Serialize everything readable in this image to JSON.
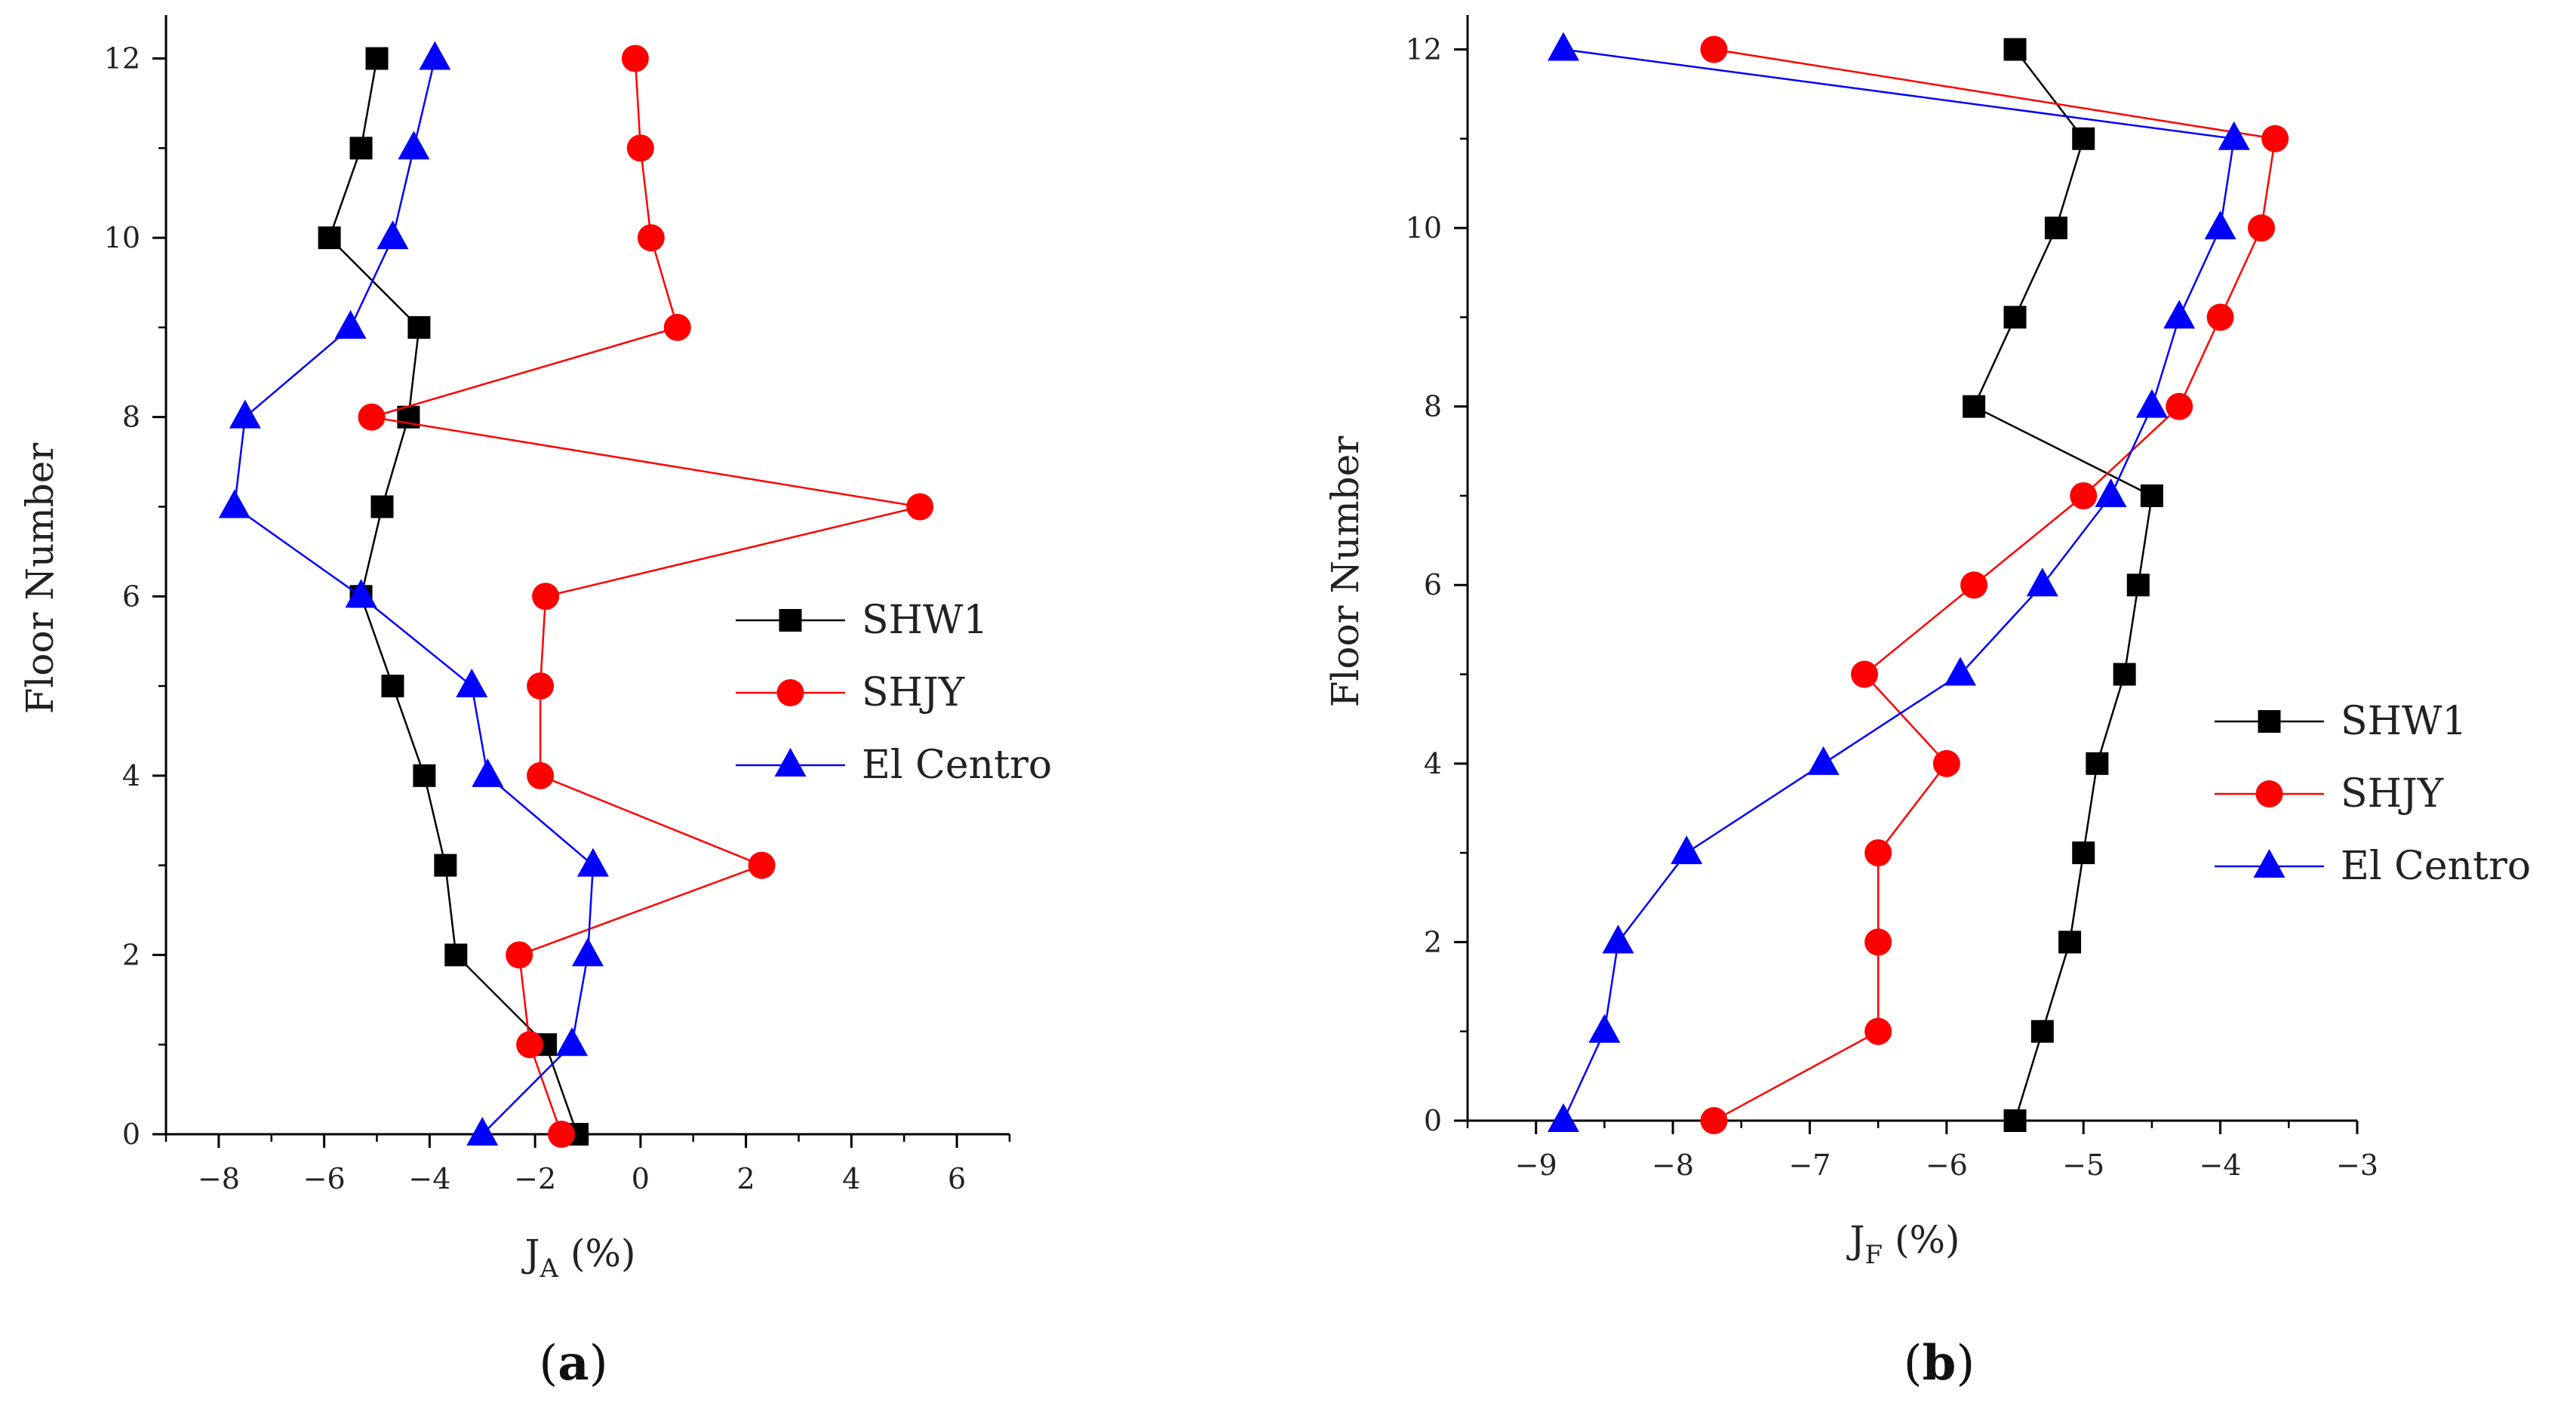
{
  "chart_data": [
    {
      "id": "a",
      "type": "line",
      "panel_label": {
        "open": "(",
        "letter": "a",
        "close": ")"
      },
      "xlabel": {
        "main": "J",
        "sub": "A",
        "unit": " (%)"
      },
      "ylabel": "Floor Number",
      "xlim": [
        -9,
        7
      ],
      "ylim": [
        0,
        12.4
      ],
      "xticks": [
        -8,
        -6,
        -4,
        -2,
        0,
        2,
        4,
        6
      ],
      "yticks": [
        0,
        2,
        4,
        6,
        8,
        10,
        12
      ],
      "legend_position": "center-right",
      "series": [
        {
          "name": "SHW1",
          "color": "#000000",
          "marker": "square",
          "points": [
            [
              -1.2,
              0
            ],
            [
              -1.8,
              1
            ],
            [
              -3.5,
              2
            ],
            [
              -3.7,
              3
            ],
            [
              -4.1,
              4
            ],
            [
              -4.7,
              5
            ],
            [
              -5.3,
              6
            ],
            [
              -4.9,
              7
            ],
            [
              -4.4,
              8
            ],
            [
              -4.2,
              9
            ],
            [
              -5.9,
              10
            ],
            [
              -5.3,
              11
            ],
            [
              -5.0,
              12
            ]
          ]
        },
        {
          "name": "SHJY",
          "color": "#ff0000",
          "marker": "circle",
          "points": [
            [
              -1.5,
              0
            ],
            [
              -2.1,
              1
            ],
            [
              -2.3,
              2
            ],
            [
              2.3,
              3
            ],
            [
              -1.9,
              4
            ],
            [
              -1.9,
              5
            ],
            [
              -1.8,
              6
            ],
            [
              5.3,
              7
            ],
            [
              -5.1,
              8
            ],
            [
              0.7,
              9
            ],
            [
              0.2,
              10
            ],
            [
              0.0,
              11
            ],
            [
              -0.1,
              12
            ]
          ]
        },
        {
          "name": "El Centro",
          "color": "#0000ff",
          "marker": "triangle",
          "points": [
            [
              -3.0,
              0
            ],
            [
              -1.3,
              1
            ],
            [
              -1.0,
              2
            ],
            [
              -0.9,
              3
            ],
            [
              -2.9,
              4
            ],
            [
              -3.2,
              5
            ],
            [
              -5.3,
              6
            ],
            [
              -7.7,
              7
            ],
            [
              -7.5,
              8
            ],
            [
              -5.5,
              9
            ],
            [
              -4.7,
              10
            ],
            [
              -4.3,
              11
            ],
            [
              -3.9,
              12
            ]
          ]
        }
      ]
    },
    {
      "id": "b",
      "type": "line",
      "panel_label": {
        "open": "(",
        "letter": "b",
        "close": ")"
      },
      "xlabel": {
        "main": "J",
        "sub": "F",
        "unit": " (%)"
      },
      "ylabel": "Floor Number",
      "xlim": [
        -9.5,
        -3
      ],
      "ylim": [
        0,
        12.3
      ],
      "xticks": [
        -9,
        -8,
        -7,
        -6,
        -5,
        -4,
        -3
      ],
      "yticks": [
        0,
        2,
        4,
        6,
        8,
        10,
        12
      ],
      "legend_position": "lower-right",
      "series": [
        {
          "name": "SHW1",
          "color": "#000000",
          "marker": "square",
          "points": [
            [
              -5.5,
              0
            ],
            [
              -5.3,
              1
            ],
            [
              -5.1,
              2
            ],
            [
              -5.0,
              3
            ],
            [
              -4.9,
              4
            ],
            [
              -4.7,
              5
            ],
            [
              -4.6,
              6
            ],
            [
              -4.5,
              7
            ],
            [
              -5.8,
              8
            ],
            [
              -5.5,
              9
            ],
            [
              -5.2,
              10
            ],
            [
              -5.0,
              11
            ],
            [
              -5.5,
              12
            ]
          ]
        },
        {
          "name": "SHJY",
          "color": "#ff0000",
          "marker": "circle",
          "points": [
            [
              -7.7,
              0
            ],
            [
              -6.5,
              1
            ],
            [
              -6.5,
              2
            ],
            [
              -6.5,
              3
            ],
            [
              -6.0,
              4
            ],
            [
              -6.6,
              5
            ],
            [
              -5.8,
              6
            ],
            [
              -5.0,
              7
            ],
            [
              -4.3,
              8
            ],
            [
              -4.0,
              9
            ],
            [
              -3.7,
              10
            ],
            [
              -3.6,
              11
            ],
            [
              -7.7,
              12
            ]
          ]
        },
        {
          "name": "El Centro",
          "color": "#0000ff",
          "marker": "triangle",
          "points": [
            [
              -8.8,
              0
            ],
            [
              -8.5,
              1
            ],
            [
              -8.4,
              2
            ],
            [
              -7.9,
              3
            ],
            [
              -6.9,
              4
            ],
            [
              -5.9,
              5
            ],
            [
              -5.3,
              6
            ],
            [
              -4.8,
              7
            ],
            [
              -4.5,
              8
            ],
            [
              -4.3,
              9
            ],
            [
              -4.0,
              10
            ],
            [
              -3.9,
              11
            ],
            [
              -8.8,
              12
            ]
          ]
        }
      ]
    }
  ]
}
